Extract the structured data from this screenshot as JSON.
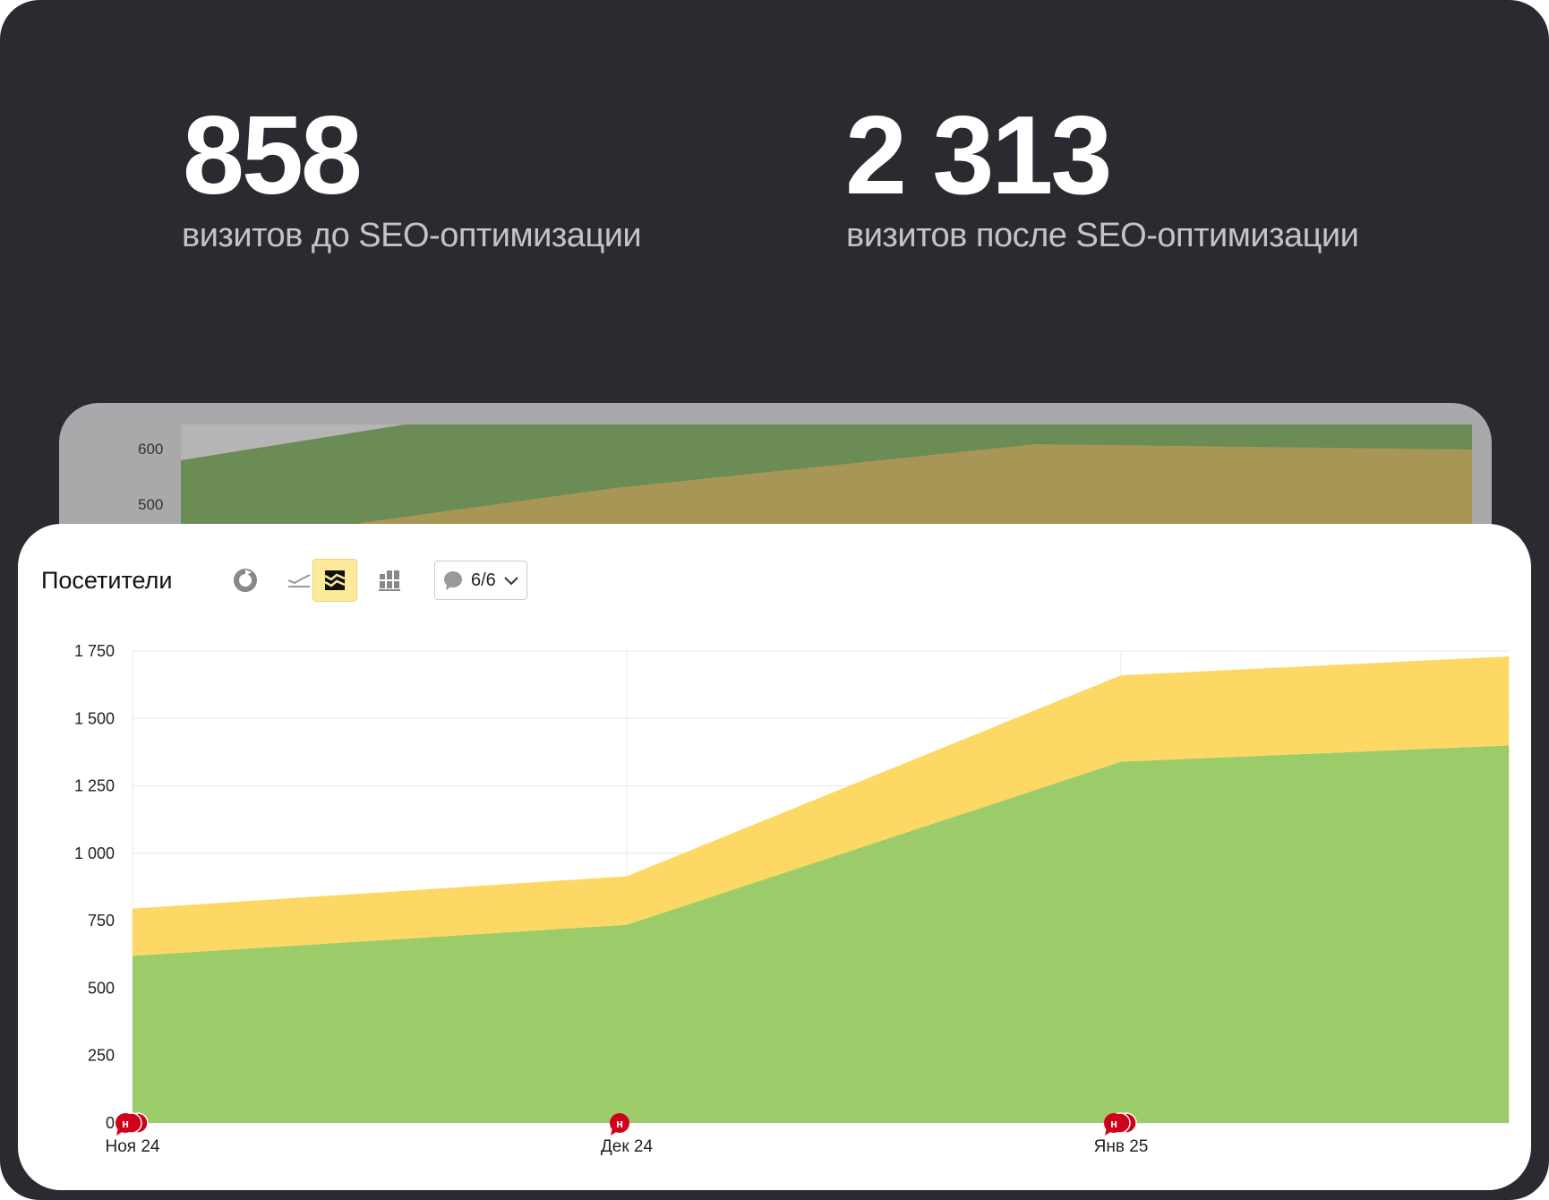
{
  "stats": [
    {
      "value": "858",
      "label": "визитов до SEO-оптимизации"
    },
    {
      "value": "2 313",
      "label": "визитов после SEO-оптимизации"
    }
  ],
  "back_chart": {
    "y_ticks": [
      "600",
      "500"
    ],
    "colors": {
      "green": "#6b8c54",
      "tan": "#a89657"
    }
  },
  "widget": {
    "title": "Посетители",
    "toolbar": [
      {
        "icon": "pie-chart-icon",
        "active": false
      },
      {
        "icon": "line-chart-icon",
        "active": false
      },
      {
        "icon": "area-chart-icon",
        "active": true
      },
      {
        "icon": "bar-chart-icon",
        "active": false
      }
    ],
    "annotations_dropdown": {
      "icon": "comment-icon",
      "value": "6/6"
    }
  },
  "chart_data": {
    "type": "area",
    "stacked": true,
    "categories": [
      "Ноя 24",
      "Дек 24",
      "Янв 25",
      ""
    ],
    "x_positions_months": [
      0,
      1,
      2,
      2.785
    ],
    "series": [
      {
        "values": [
          620,
          735,
          1340,
          1400
        ],
        "color": "#9ccc6a"
      },
      {
        "values": [
          175,
          180,
          320,
          330
        ],
        "color": "#fdd865"
      }
    ],
    "y_ticks": [
      0,
      250,
      500,
      750,
      1000,
      1250,
      1500,
      1750
    ],
    "y_tick_labels": [
      "0",
      "250",
      "500",
      "750",
      "1 000",
      "1 250",
      "1 500",
      "1 750"
    ],
    "ylim": [
      0,
      1750
    ],
    "grid": true,
    "annotations": [
      {
        "at": "Ноя 24",
        "count": 3,
        "label": "н"
      },
      {
        "at": "Дек 24",
        "count": 1,
        "label": "н"
      },
      {
        "at": "Янв 25",
        "count": 3,
        "label": "н"
      }
    ]
  }
}
